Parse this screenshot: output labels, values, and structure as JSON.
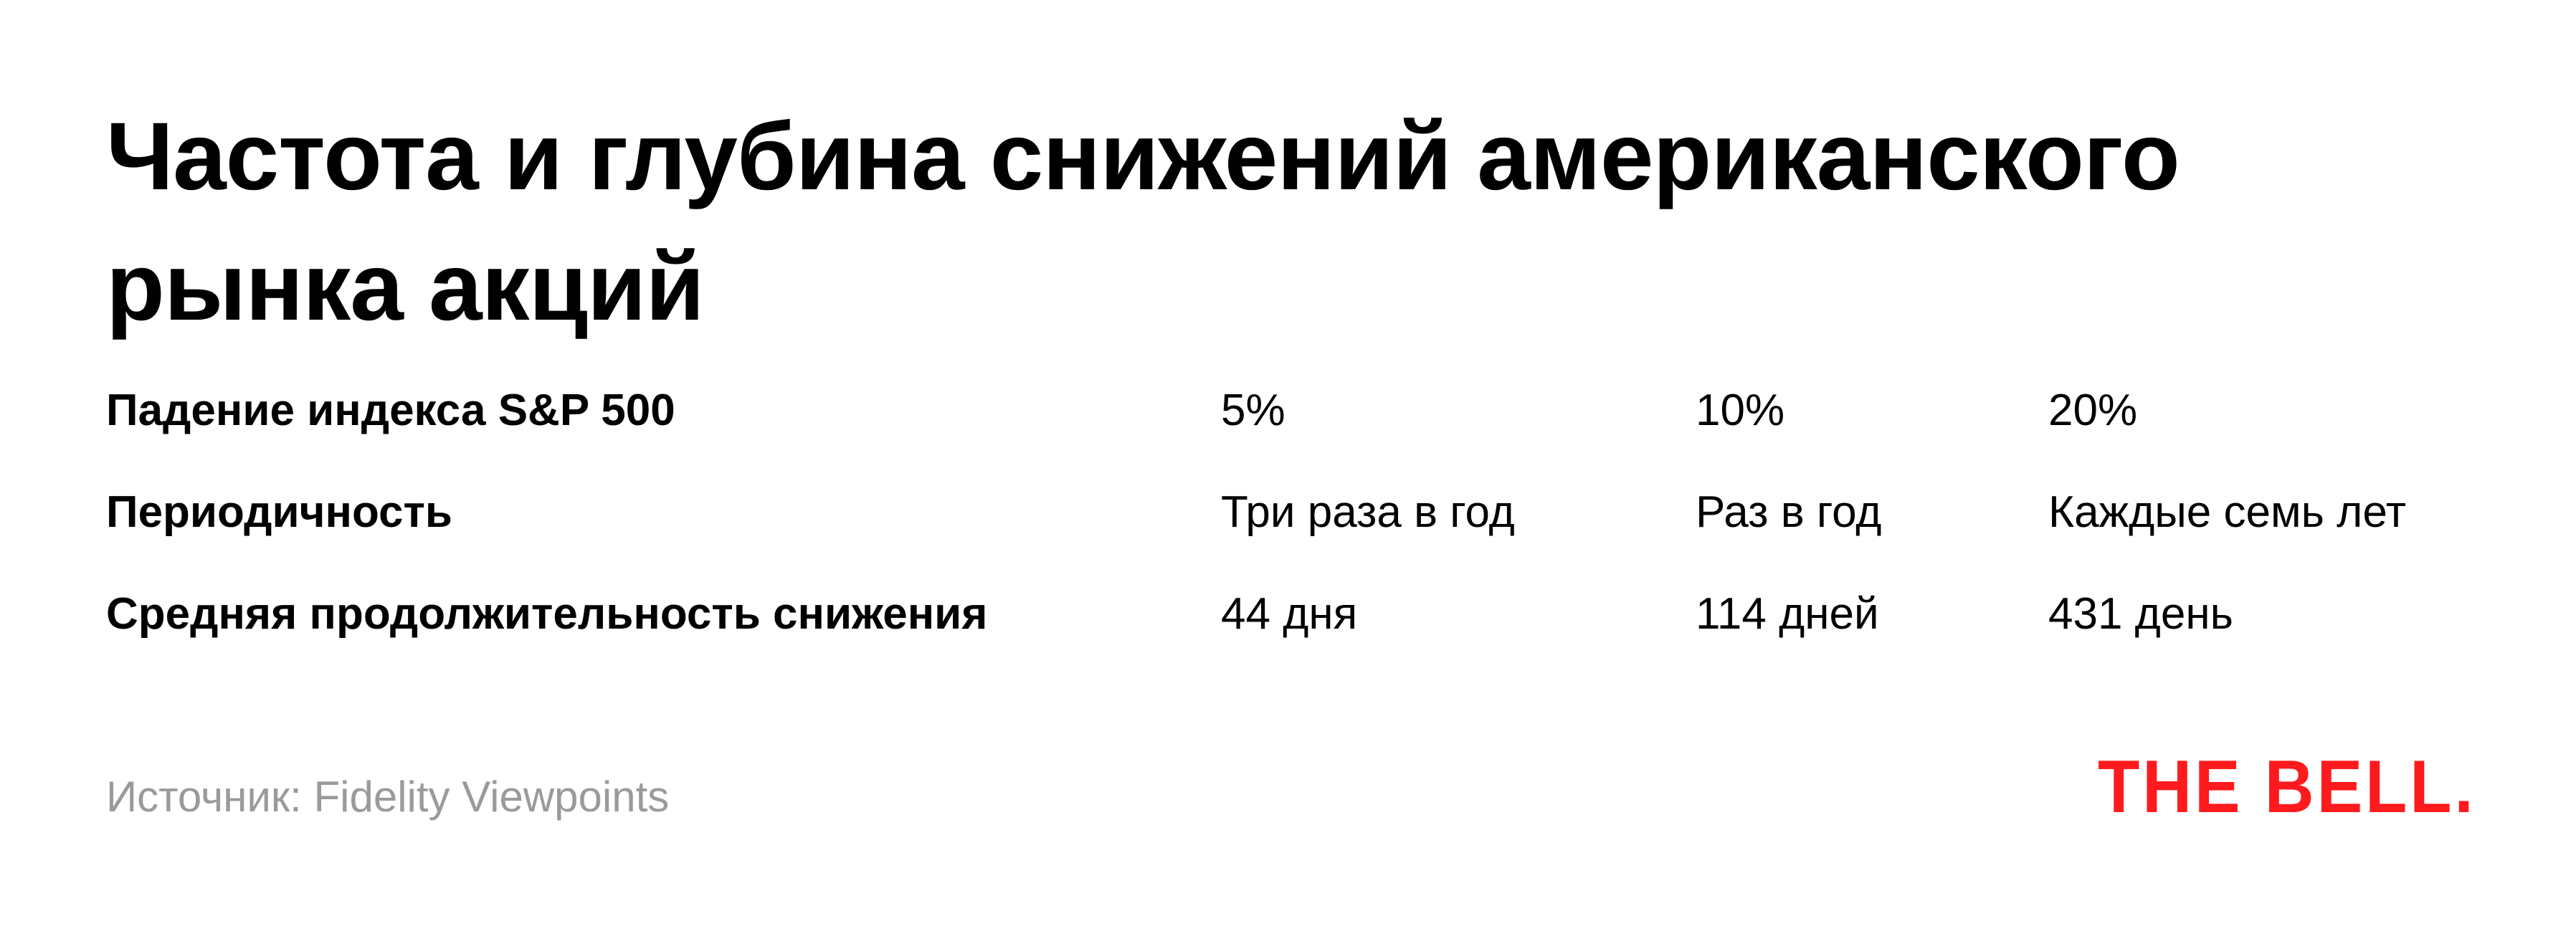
{
  "title": "Частота и глубина снижений американского рынка акций",
  "table": {
    "rows": [
      {
        "label": "Падение индекса S&P 500",
        "values": [
          "5%",
          "10%",
          "20%"
        ]
      },
      {
        "label": "Периодичность",
        "values": [
          "Три раза в год",
          "Раз в год",
          "Каждые семь лет"
        ]
      },
      {
        "label": "Средняя продолжительность снижения",
        "values": [
          "44 дня",
          "114 дней",
          "431 день"
        ]
      }
    ]
  },
  "source": "Источник: Fidelity Viewpoints",
  "logo": "THE BELL.",
  "colors": {
    "brand": "#ff1a1d",
    "source_text": "#9a9a9a"
  }
}
